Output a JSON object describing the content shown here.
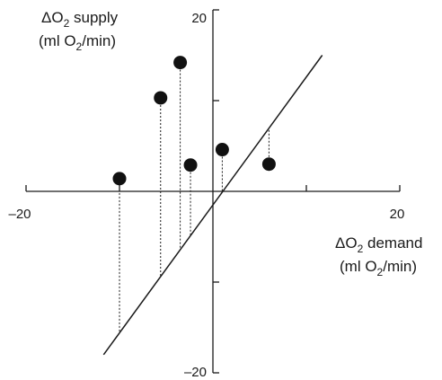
{
  "chart_data": {
    "type": "scatter",
    "title": "",
    "xlabel_line1_prefix": "ΔO",
    "xlabel_line1_suffix": " demand",
    "xlabel_line2_prefix": "(ml O",
    "xlabel_line2_suffix": "/min)",
    "ylabel_line1_prefix": "ΔO",
    "ylabel_line1_suffix": " supply",
    "ylabel_line2_prefix": "(ml O",
    "ylabel_line2_suffix": "/min)",
    "subscript": "2",
    "xlim": [
      -20,
      20
    ],
    "ylim": [
      -20,
      20
    ],
    "x_tick_values": [
      -20,
      -10,
      0,
      10,
      20
    ],
    "y_tick_values": [
      -20,
      -10,
      0,
      10,
      20
    ],
    "x_tick_labels": [
      {
        "value": -20,
        "label": "–20"
      },
      {
        "value": 20,
        "label": "20"
      }
    ],
    "y_tick_labels": [
      {
        "value": 20,
        "label": "20"
      },
      {
        "value": -20,
        "label": "–20"
      }
    ],
    "identity_line": {
      "x": [
        -11.7,
        11.7
      ],
      "y": [
        -18,
        15
      ]
    },
    "points": [
      {
        "x": -10,
        "y": 1.4
      },
      {
        "x": -5.6,
        "y": 10.3
      },
      {
        "x": -3.5,
        "y": 14.2
      },
      {
        "x": -2.4,
        "y": 2.9
      },
      {
        "x": 1.0,
        "y": 4.6
      },
      {
        "x": 6.0,
        "y": 3.0
      }
    ],
    "drop_lines": "dotted vertical from each point to identity line",
    "grid": false,
    "legend": "none"
  }
}
